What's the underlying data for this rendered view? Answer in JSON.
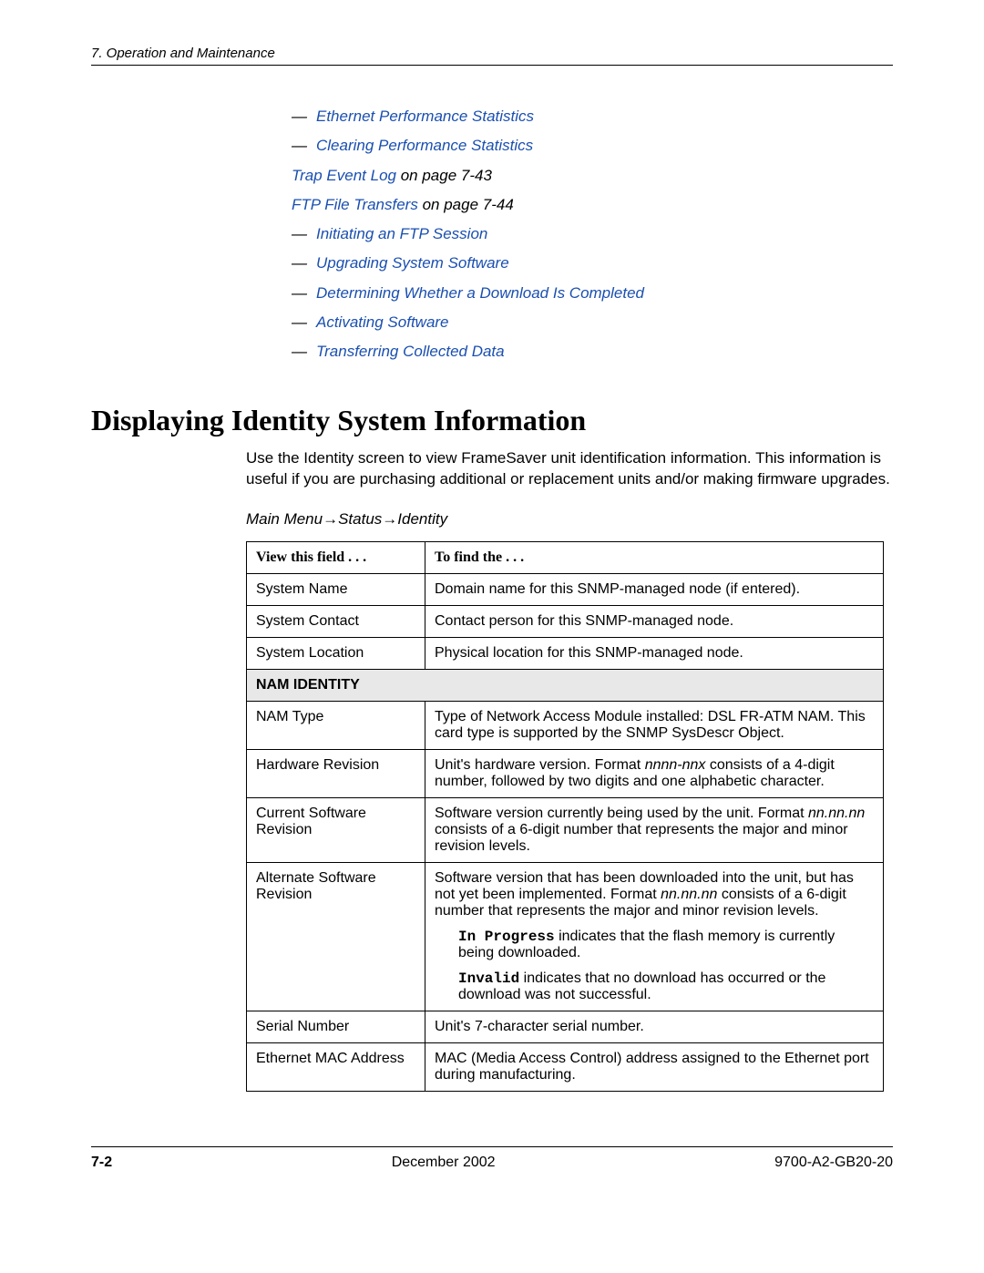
{
  "header": {
    "chapter": "7. Operation and Maintenance"
  },
  "toc": [
    {
      "dash": true,
      "parts": [
        {
          "text": "Ethernet Performance Statistics",
          "link": true
        }
      ]
    },
    {
      "dash": true,
      "parts": [
        {
          "text": "Clearing Performance Statistics",
          "link": true
        }
      ]
    },
    {
      "dash": false,
      "parts": [
        {
          "text": "Trap Event Log",
          "link": true
        },
        {
          "text": " on page 7-43",
          "link": false
        }
      ]
    },
    {
      "dash": false,
      "parts": [
        {
          "text": "FTP File Transfers",
          "link": true
        },
        {
          "text": " on page 7-44",
          "link": false
        }
      ]
    },
    {
      "dash": true,
      "parts": [
        {
          "text": "Initiating an FTP Session",
          "link": true
        }
      ]
    },
    {
      "dash": true,
      "parts": [
        {
          "text": "Upgrading System Software",
          "link": true
        }
      ]
    },
    {
      "dash": true,
      "parts": [
        {
          "text": "Determining Whether a Download Is Completed",
          "link": true
        }
      ]
    },
    {
      "dash": true,
      "parts": [
        {
          "text": "Activating Software",
          "link": true
        }
      ]
    },
    {
      "dash": true,
      "parts": [
        {
          "text": "Transferring Collected Data",
          "link": true
        }
      ]
    }
  ],
  "section_title": "Displaying Identity System Information",
  "intro": "Use the Identity screen to view FrameSaver unit identification information. This information is useful if you are purchasing additional or replacement units and/or making firmware upgrades.",
  "nav_path": "Main Menu→Status→Identity",
  "table": {
    "head_field": "View this field . . .",
    "head_find": "To find the . . .",
    "rows": [
      {
        "field": "System Name",
        "desc": "Domain name for this SNMP-managed node (if entered)."
      },
      {
        "field": "System Contact",
        "desc": "Contact person for this SNMP-managed node."
      },
      {
        "field": "System Location",
        "desc": "Physical location for this SNMP-managed node."
      }
    ],
    "section_label": "NAM IDENTITY",
    "rows2": {
      "nam_type": {
        "field": "NAM Type",
        "desc": "Type of Network Access Module installed: DSL FR-ATM NAM. This card type is supported by the SNMP SysDescr Object."
      },
      "hw_rev": {
        "field": "Hardware Revision",
        "pre": "Unit's hardware version. Format ",
        "ital": "nnnn-nnx",
        "post": " consists of a 4-digit number, followed by two digits and one alphabetic character."
      },
      "cur_sw": {
        "field": "Current Software Revision",
        "pre": "Software version currently being used by the unit. Format ",
        "ital": "nn.nn.nn",
        "post": " consists of a 6-digit number that represents the major and minor revision levels."
      },
      "alt_sw": {
        "field": "Alternate Software Revision",
        "pre": "Software version that has been downloaded into the unit, but has not yet been implemented. Format ",
        "ital": "nn.nn.nn",
        "post": " consists of a 6-digit number that represents the major and minor revision levels.",
        "note1_bold": "In Progress",
        "note1_rest": " indicates that the flash memory is currently being downloaded.",
        "note2_bold": "Invalid",
        "note2_rest": " indicates that no download has occurred or the download was not successful."
      },
      "serial": {
        "field": "Serial Number",
        "desc": "Unit's 7-character serial number."
      },
      "mac": {
        "field": "Ethernet MAC Address",
        "desc": "MAC (Media Access Control) address assigned to the Ethernet port during manufacturing."
      }
    }
  },
  "footer": {
    "page": "7-2",
    "date": "December 2002",
    "doc": "9700-A2-GB20-20"
  }
}
